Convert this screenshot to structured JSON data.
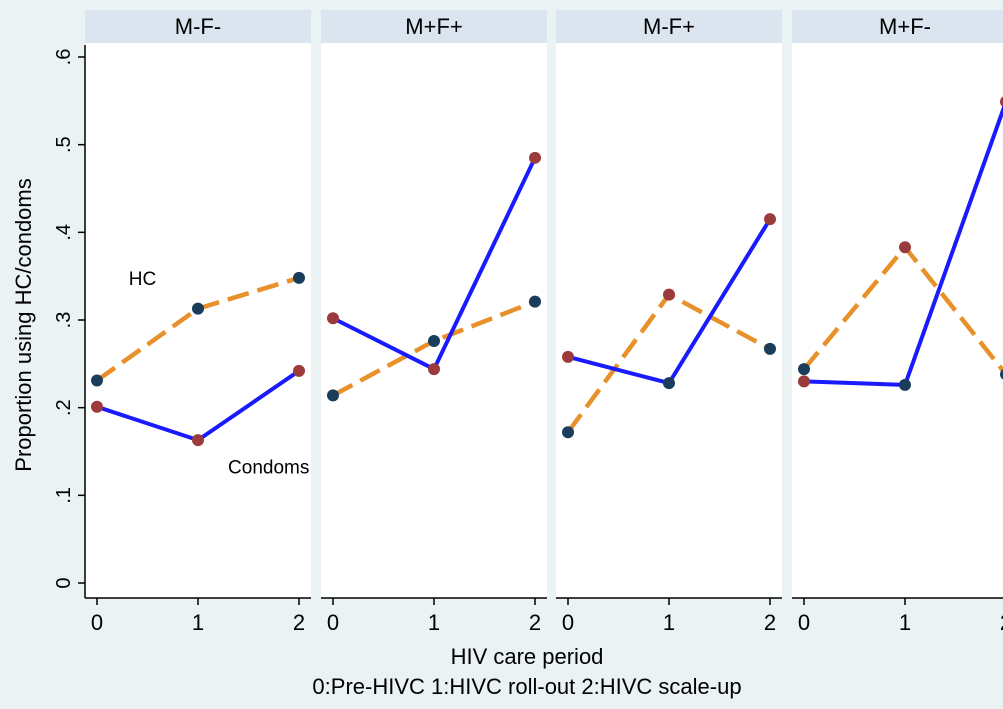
{
  "chart_data": {
    "type": "line",
    "ylabel": "Proportion using HC/condoms",
    "xlabel": "HIV care period",
    "subtitle": "0:Pre-HIVC 1:HIVC roll-out 2:HIVC scale-up",
    "ylim": [
      0,
      0.6
    ],
    "y_ticks": [
      0,
      0.1,
      0.2,
      0.3,
      0.4,
      0.5,
      0.6
    ],
    "y_tick_labels": [
      "0",
      ".1",
      ".2",
      ".3",
      ".4",
      ".5",
      ".6"
    ],
    "x": [
      0,
      1,
      2
    ],
    "x_tick_labels": [
      "0",
      "1",
      "2"
    ],
    "grid": false,
    "colors": {
      "condoms_line": "#1a1aff",
      "hc_line": "#e8902a",
      "marker_a": "#9b3b3b",
      "marker_b": "#1a3d5c",
      "strip": "#dbe5ef",
      "panel": "#ffffff",
      "background": "#eaf2f3"
    },
    "annotations": [
      {
        "panel": 0,
        "text": "HC",
        "x": 0.45,
        "y": 0.34
      },
      {
        "panel": 0,
        "text": "Condoms",
        "x": 1.7,
        "y": 0.125
      }
    ],
    "panels": [
      {
        "title": "M-F-",
        "series": [
          {
            "name": "HC",
            "values": [
              0.231,
              0.313,
              0.348
            ]
          },
          {
            "name": "Condoms",
            "values": [
              0.201,
              0.163,
              0.242
            ]
          }
        ]
      },
      {
        "title": "M+F+",
        "series": [
          {
            "name": "HC",
            "values": [
              0.214,
              0.276,
              0.321
            ]
          },
          {
            "name": "Condoms",
            "values": [
              0.302,
              0.244,
              0.485
            ]
          }
        ]
      },
      {
        "title": "M-F+",
        "series": [
          {
            "name": "HC",
            "values": [
              0.172,
              0.329,
              0.267
            ]
          },
          {
            "name": "Condoms",
            "values": [
              0.258,
              0.228,
              0.415
            ]
          }
        ]
      },
      {
        "title": "M+F-",
        "series": [
          {
            "name": "HC",
            "values": [
              0.244,
              0.383,
              0.238
            ]
          },
          {
            "name": "Condoms",
            "values": [
              0.23,
              0.226,
              0.549
            ]
          }
        ]
      }
    ]
  }
}
